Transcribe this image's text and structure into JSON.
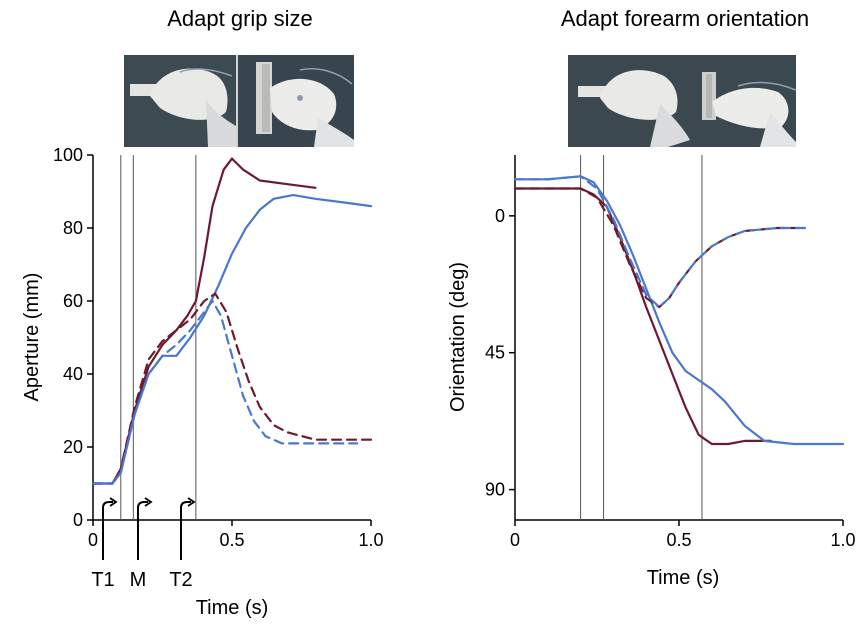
{
  "chart_data": [
    {
      "type": "line",
      "title": "Adapt grip size",
      "xlabel": "Time (s)",
      "ylabel": "Aperture (mm)",
      "xlim": [
        0,
        1.0
      ],
      "ylim": [
        0,
        100
      ],
      "x_ticks": [
        "0",
        "0.5",
        "1.0"
      ],
      "y_ticks": [
        "0",
        "20",
        "40",
        "60",
        "80",
        "100"
      ],
      "grid": false,
      "photo_inset": {
        "icon": "hand-grasping-photo",
        "panels": 2
      },
      "event_lines": [
        0.1,
        0.145,
        0.37
      ],
      "event_markers": [
        {
          "label": "T1",
          "x": 0.1
        },
        {
          "label": "M",
          "x": 0.145
        },
        {
          "label": "T2",
          "x": 0.37
        }
      ],
      "series": [
        {
          "color": "#6e1a2e",
          "style": "solid",
          "x": [
            0,
            0.07,
            0.1,
            0.15,
            0.2,
            0.25,
            0.3,
            0.34,
            0.37,
            0.4,
            0.43,
            0.47,
            0.5,
            0.54,
            0.6,
            0.7,
            0.8
          ],
          "y": [
            10,
            10,
            14,
            30,
            42,
            48,
            52,
            56,
            60,
            72,
            86,
            96,
            99,
            96,
            93,
            92,
            91
          ]
        },
        {
          "color": "#4a78cc",
          "style": "solid",
          "x": [
            0,
            0.07,
            0.1,
            0.15,
            0.2,
            0.25,
            0.3,
            0.35,
            0.4,
            0.45,
            0.5,
            0.55,
            0.6,
            0.65,
            0.72,
            0.8,
            0.9,
            1.0
          ],
          "y": [
            10,
            10,
            13,
            29,
            40,
            45,
            45,
            50,
            56,
            64,
            73,
            80,
            85,
            88,
            89,
            88,
            87,
            86
          ]
        },
        {
          "color": "#6e1a2e",
          "style": "dashed",
          "x": [
            0,
            0.07,
            0.1,
            0.15,
            0.2,
            0.25,
            0.3,
            0.35,
            0.4,
            0.44,
            0.48,
            0.52,
            0.56,
            0.6,
            0.65,
            0.7,
            0.8,
            0.9,
            1.0
          ],
          "y": [
            10,
            10,
            14,
            31,
            44,
            49,
            52,
            55,
            60,
            62,
            57,
            47,
            38,
            31,
            26,
            24,
            22,
            22,
            22
          ]
        },
        {
          "color": "#4a78cc",
          "style": "dashed",
          "x": [
            0,
            0.07,
            0.1,
            0.15,
            0.2,
            0.25,
            0.3,
            0.35,
            0.4,
            0.43,
            0.46,
            0.5,
            0.54,
            0.58,
            0.62,
            0.68,
            0.75,
            0.85,
            0.95
          ],
          "y": [
            10,
            10,
            13,
            29,
            40,
            45,
            48,
            52,
            57,
            60,
            56,
            45,
            34,
            27,
            23,
            21,
            21,
            21,
            21
          ]
        }
      ]
    },
    {
      "type": "line",
      "title": "Adapt forearm orientation",
      "xlabel": "Time (s)",
      "ylabel": "Orientation (deg)",
      "xlim": [
        0,
        1.0
      ],
      "ylim": [
        -20,
        100
      ],
      "y_inverted": true,
      "x_ticks": [
        "0",
        "0.5",
        "1.0"
      ],
      "y_ticks": [
        "0",
        "45",
        "90"
      ],
      "grid": false,
      "photo_inset": {
        "icon": "forearm-rotation-photo",
        "panels": 2
      },
      "event_lines": [
        0.2,
        0.27,
        0.57
      ],
      "series": [
        {
          "color": "#6e1a2e",
          "style": "solid",
          "x": [
            0,
            0.1,
            0.2,
            0.24,
            0.28,
            0.32,
            0.36,
            0.4,
            0.44,
            0.48,
            0.52,
            0.56,
            0.6,
            0.65,
            0.7,
            0.78
          ],
          "y": [
            -9,
            -9,
            -9,
            -7,
            -3,
            7,
            18,
            30,
            41,
            52,
            63,
            72,
            75,
            75,
            74,
            74
          ]
        },
        {
          "color": "#4a78cc",
          "style": "solid",
          "x": [
            0,
            0.1,
            0.2,
            0.24,
            0.28,
            0.32,
            0.36,
            0.4,
            0.44,
            0.48,
            0.52,
            0.56,
            0.6,
            0.64,
            0.7,
            0.76,
            0.85,
            1.0
          ],
          "y": [
            -12,
            -12,
            -13,
            -11,
            -5,
            3,
            13,
            24,
            35,
            45,
            51,
            54,
            57,
            61,
            69,
            74,
            75,
            75
          ]
        },
        {
          "color": "#6e1a2e",
          "style": "dashed",
          "x": [
            0,
            0.1,
            0.2,
            0.25,
            0.3,
            0.35,
            0.4,
            0.44,
            0.47,
            0.5,
            0.55,
            0.6,
            0.65,
            0.7,
            0.8,
            0.86
          ],
          "y": [
            -9,
            -9,
            -9,
            -6,
            3,
            16,
            27,
            30,
            27,
            22,
            15,
            10,
            7,
            5,
            4,
            4
          ]
        },
        {
          "color": "#4a78cc",
          "style": "dashed",
          "x": [
            0,
            0.1,
            0.2,
            0.25,
            0.3,
            0.35,
            0.4,
            0.44,
            0.47,
            0.5,
            0.55,
            0.6,
            0.65,
            0.7,
            0.8,
            0.9
          ],
          "y": [
            -12,
            -12,
            -13,
            -9,
            1,
            14,
            26,
            30,
            27,
            22,
            15,
            10,
            7,
            5,
            4,
            4
          ]
        }
      ]
    }
  ]
}
